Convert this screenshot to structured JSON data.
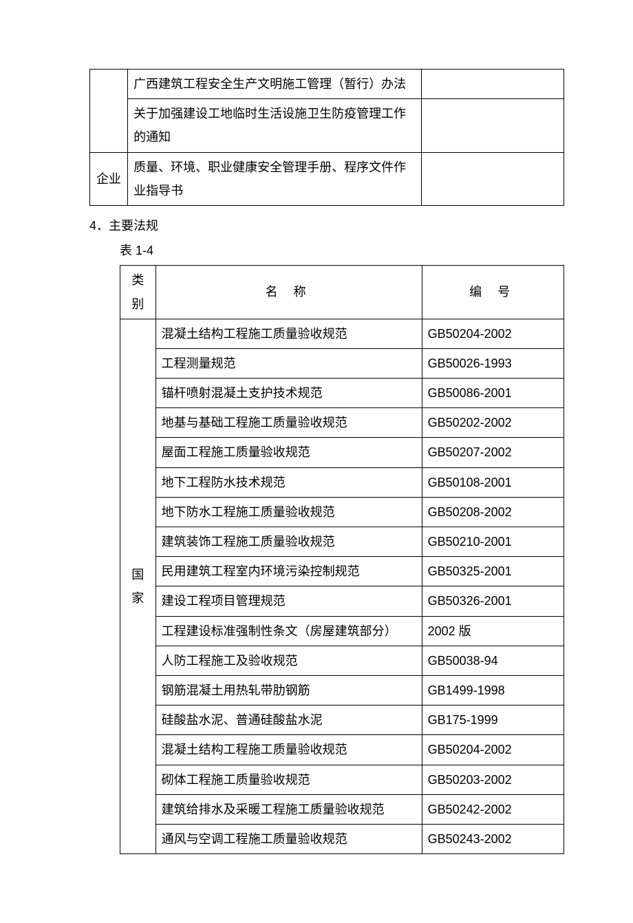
{
  "table1": {
    "rows": [
      {
        "cat": "",
        "name": "广西建筑工程安全生产文明施工管理（暂行）办法",
        "code": "",
        "rowspan": 2
      },
      {
        "name": "关于加强建设工地临时生活设施卫生防疫管理工作的通知",
        "code": ""
      },
      {
        "cat": "企业",
        "name": "质量、环境、职业健康安全管理手册、程序文件作业指导书",
        "code": "",
        "rowspan": 1
      }
    ]
  },
  "section": {
    "heading": "4．主要法规",
    "tableLabel": "表 1-4"
  },
  "table2": {
    "headers": {
      "cat": "类别",
      "name": "名    称",
      "code": "编  号"
    },
    "catLabel": "国家",
    "rows": [
      {
        "name": "混凝土结构工程施工质量验收规范",
        "code": "GB50204-2002"
      },
      {
        "name": "工程测量规范",
        "code": "GB50026-1993"
      },
      {
        "name": "锚杆喷射混凝土支护技术规范",
        "code": "GB50086-2001"
      },
      {
        "name": "地基与基础工程施工质量验收规范",
        "code": "GB50202-2002"
      },
      {
        "name": "屋面工程施工质量验收规范",
        "code": "GB50207-2002"
      },
      {
        "name": "地下工程防水技术规范",
        "code": "GB50108-2001"
      },
      {
        "name": "地下防水工程施工质量验收规范",
        "code": "GB50208-2002"
      },
      {
        "name": "建筑装饰工程施工质量验收规范",
        "code": "GB50210-2001"
      },
      {
        "name": "民用建筑工程室内环境污染控制规范",
        "code": "GB50325-2001"
      },
      {
        "name": "建设工程项目管理规范",
        "code": "GB50326-2001"
      },
      {
        "name": "工程建设标准强制性条文（房屋建筑部分）",
        "code": "2002 版"
      },
      {
        "name": "人防工程施工及验收规范",
        "code": "GB50038-94"
      },
      {
        "name": "钢筋混凝土用热轧带肋钢筋",
        "code": "GB1499-1998"
      },
      {
        "name": "硅酸盐水泥、普通硅酸盐水泥",
        "code": "GB175-1999"
      },
      {
        "name": "混凝土结构工程施工质量验收规范",
        "code": "GB50204-2002"
      },
      {
        "name": "砌体工程施工质量验收规范",
        "code": "GB50203-2002"
      },
      {
        "name": "建筑给排水及采暖工程施工质量验收规范",
        "code": "GB50242-2002"
      },
      {
        "name": "通风与空调工程施工质量验收规范",
        "code": "GB50243-2002"
      }
    ]
  }
}
